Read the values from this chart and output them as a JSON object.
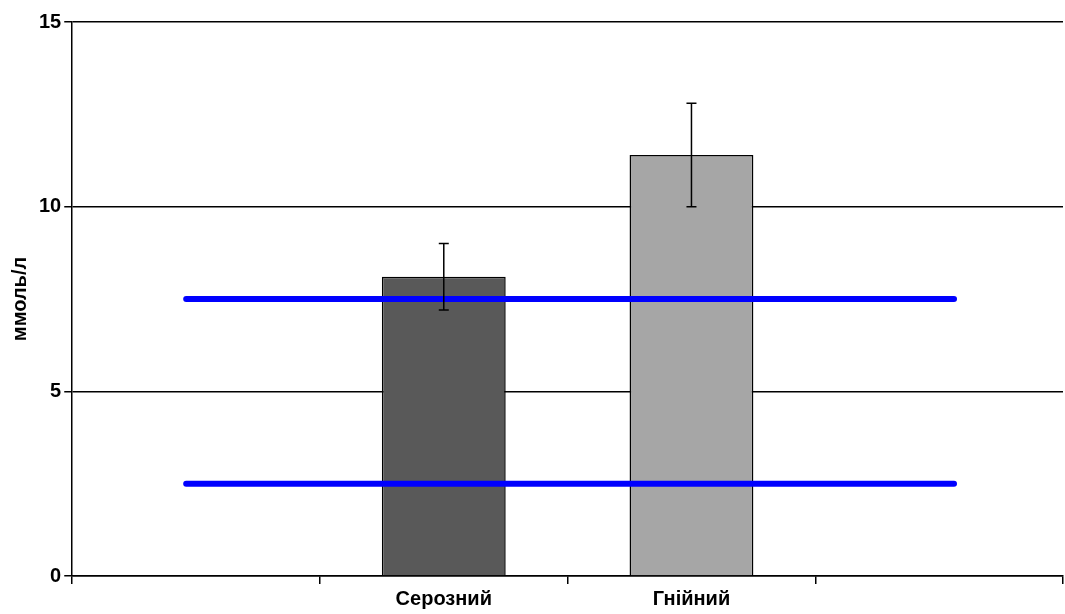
{
  "chart_data": {
    "type": "bar",
    "ylabel": "ммоль/л",
    "categories": [
      null,
      "Серозний",
      "Гнійний",
      null
    ],
    "values": [
      null,
      8.1,
      11.4,
      null
    ],
    "colors": [
      "#ffffff",
      "#595959",
      "#a6a6a6",
      "#ffffff"
    ],
    "errors": [
      null,
      0.9,
      1.4,
      null
    ],
    "ylim": [
      0,
      15
    ],
    "yticks": [
      0,
      5,
      10,
      15
    ],
    "grid": "y",
    "ref_lines": [
      {
        "axis": "y",
        "value": 7.5,
        "color": "#0000ff"
      },
      {
        "axis": "y",
        "value": 2.5,
        "color": "#0000ff"
      }
    ]
  }
}
